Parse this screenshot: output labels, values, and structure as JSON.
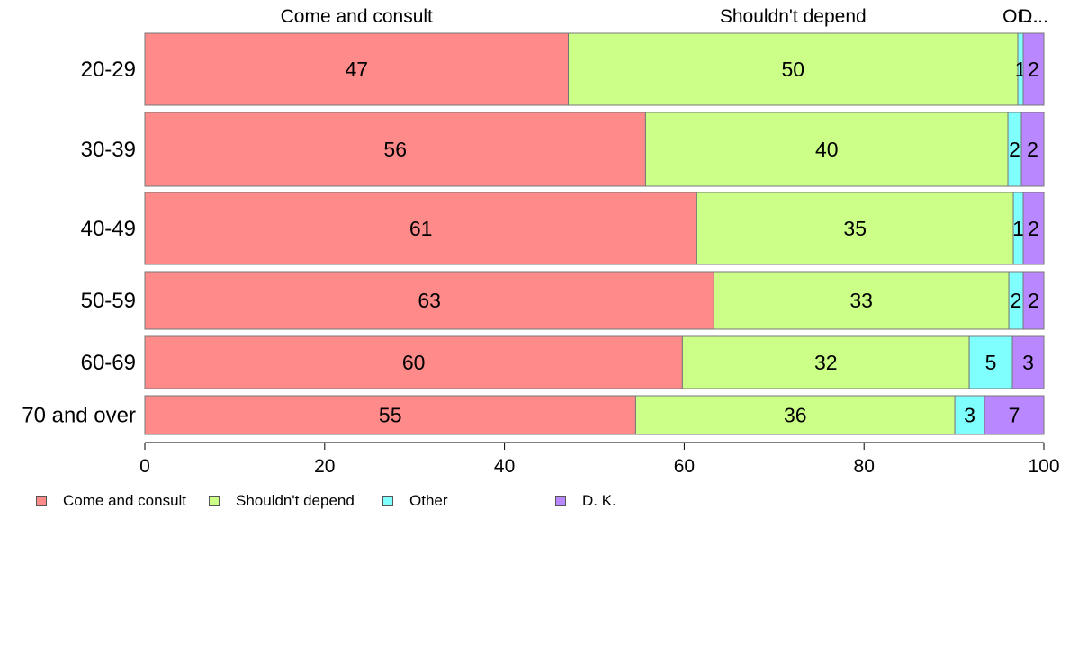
{
  "chart_data": {
    "type": "bar",
    "orientation": "horizontal",
    "stacked": true,
    "categories": [
      "20-29",
      "30-39",
      "40-49",
      "50-59",
      "60-69",
      "70 and over"
    ],
    "series": [
      {
        "name": "Come and consult",
        "values": [
          47.1,
          55.7,
          61.4,
          63.3,
          59.8,
          54.6
        ],
        "labels": [
          "47",
          "56",
          "61",
          "63",
          "60",
          "55"
        ],
        "color": "#ff8a8a"
      },
      {
        "name": "Shouldn't depend",
        "values": [
          50.0,
          40.3,
          35.2,
          32.8,
          31.9,
          35.5
        ],
        "labels": [
          "50",
          "40",
          "35",
          "33",
          "32",
          "36"
        ],
        "color": "#ccff88"
      },
      {
        "name": "Other",
        "values": [
          0.6,
          1.5,
          1.1,
          1.6,
          4.8,
          3.3
        ],
        "labels": [
          "1",
          "2",
          "1",
          "2",
          "5",
          "3"
        ],
        "color": "#80ffff"
      },
      {
        "name": "D. K.",
        "values": [
          2.3,
          2.5,
          2.3,
          2.3,
          3.5,
          6.6
        ],
        "labels": [
          "2",
          "2",
          "2",
          "2",
          "3",
          "7"
        ],
        "color": "#b987ff"
      }
    ],
    "top_labels": [
      "Come and consult",
      "Shouldn't depend",
      "Ot...",
      "D..."
    ],
    "xlim": [
      0,
      100
    ],
    "xticks": [
      0,
      20,
      40,
      60,
      80,
      100
    ],
    "grid": false,
    "legend_position": "bottom-left"
  }
}
